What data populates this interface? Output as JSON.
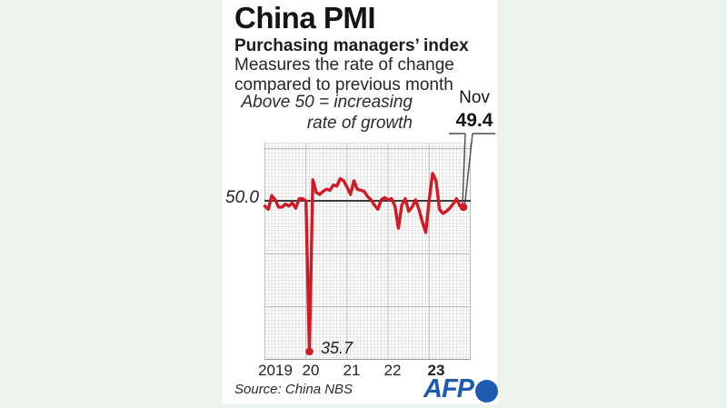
{
  "header": {
    "title": "China PMI",
    "subtitle": "Purchasing managers’ index",
    "description_line1": "Measures the rate of change",
    "description_line2": "compared to previous month"
  },
  "annotation": {
    "line1": "Above 50 = increasing",
    "line2": "rate of growth"
  },
  "callout": {
    "month": "Nov",
    "value": "49.4"
  },
  "chart_data": {
    "type": "line",
    "title": "China PMI",
    "ylabel": "",
    "xlabel": "",
    "x_tick_labels": [
      "2019",
      "20",
      "21",
      "22",
      "23"
    ],
    "ylim": [
      35,
      55.5
    ],
    "grid": true,
    "reference_line": 50.0,
    "reference_label": "50.0",
    "min_label": "35.7",
    "line_color": "#d11b24",
    "series": [
      {
        "name": "China purchasing managers' index (monthly, Jan 2019 - Nov 2023)",
        "start": "2019-01",
        "values": [
          49.5,
          49.2,
          50.5,
          50.1,
          49.4,
          49.4,
          49.7,
          49.5,
          49.8,
          49.3,
          50.2,
          50.2,
          50.0,
          35.7,
          52.0,
          50.8,
          50.6,
          50.9,
          51.1,
          51.0,
          51.5,
          51.4,
          52.1,
          51.9,
          51.3,
          50.6,
          51.9,
          51.1,
          51.0,
          50.9,
          50.4,
          50.1,
          49.6,
          49.2,
          50.1,
          50.3,
          50.1,
          50.2,
          49.5,
          47.4,
          49.6,
          50.2,
          49.0,
          49.4,
          50.1,
          49.2,
          48.0,
          47.0,
          50.1,
          52.6,
          51.9,
          49.2,
          48.8,
          49.0,
          49.3,
          49.7,
          50.2,
          49.5,
          49.4
        ]
      }
    ],
    "markers": [
      {
        "label": "35.7",
        "month_index": 13,
        "value": 35.7
      },
      {
        "label": "Nov 49.4",
        "month_index": 58,
        "value": 49.4
      }
    ]
  },
  "footer": {
    "source": "Source: China NBS",
    "logo_text": "AFP",
    "logo_color": "#1e5cb3"
  }
}
